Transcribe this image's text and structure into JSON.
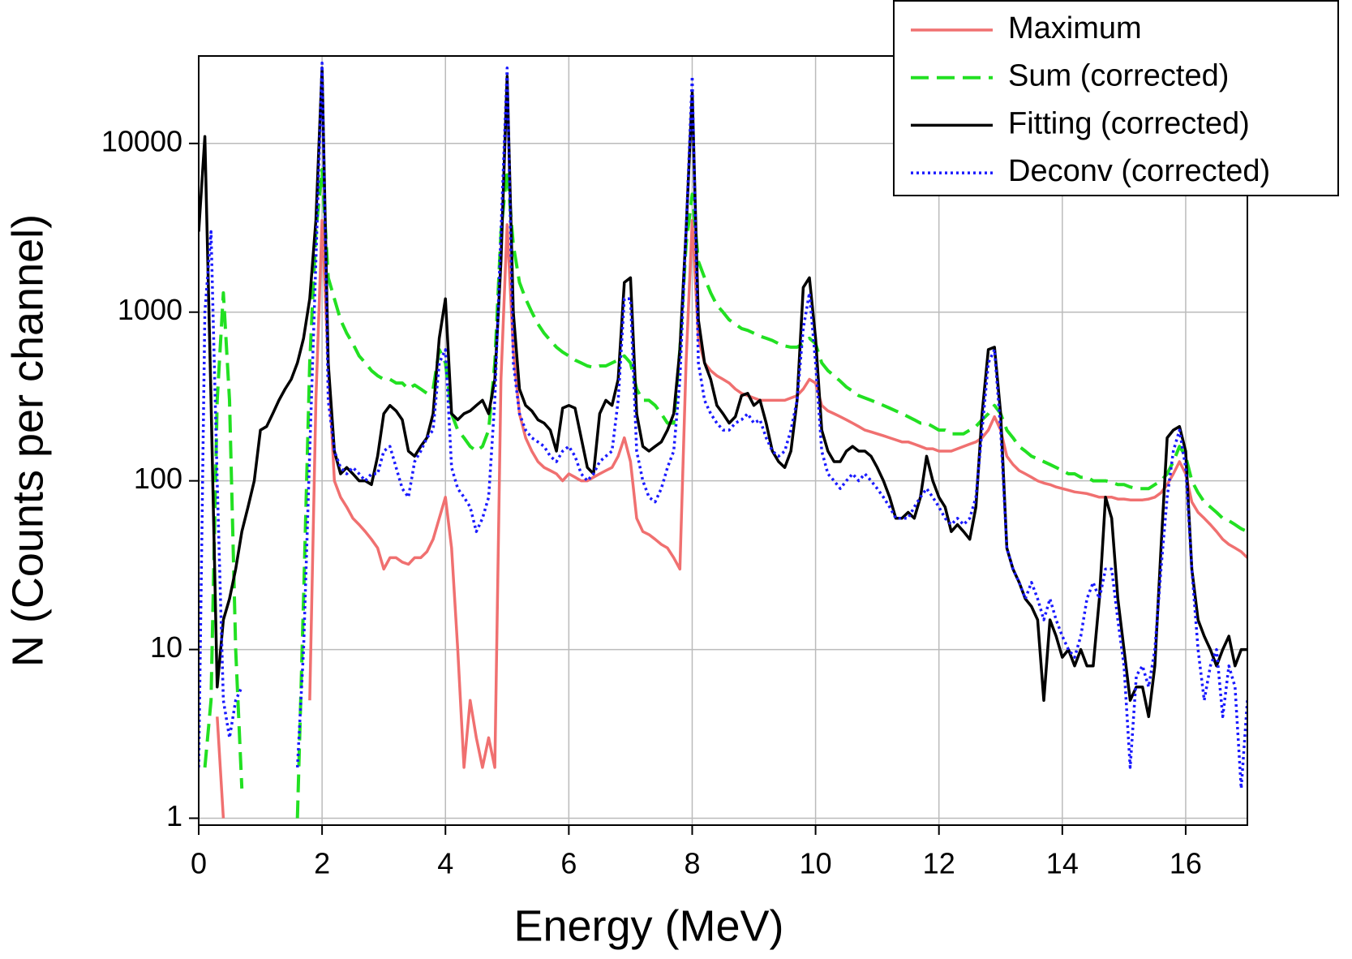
{
  "chart_data": {
    "type": "line",
    "x_label": "Energy (MeV)",
    "y_label": "N (Counts per channel)",
    "xlim": [
      0,
      17
    ],
    "ylim": [
      0.91,
      33000
    ],
    "y_scale": "log",
    "grid": true,
    "legend": "upper right",
    "xticks": [
      0,
      2,
      4,
      6,
      8,
      10,
      12,
      14,
      16
    ],
    "yticks": [
      1,
      10,
      100,
      1000,
      10000
    ],
    "x": [
      0,
      0.1,
      0.2,
      0.3,
      0.4,
      0.5,
      0.6,
      0.7,
      0.8,
      0.9,
      1,
      1.1,
      1.2,
      1.3,
      1.4,
      1.5,
      1.6,
      1.7,
      1.8,
      1.9,
      2,
      2.1,
      2.2,
      2.3,
      2.4,
      2.5,
      2.6,
      2.7,
      2.8,
      2.9,
      3,
      3.1,
      3.2,
      3.3,
      3.4,
      3.5,
      3.6,
      3.7,
      3.8,
      3.9,
      4,
      4.1,
      4.2,
      4.3,
      4.4,
      4.5,
      4.6,
      4.7,
      4.8,
      4.9,
      5,
      5.1,
      5.2,
      5.3,
      5.4,
      5.5,
      5.6,
      5.7,
      5.8,
      5.9,
      6,
      6.1,
      6.2,
      6.3,
      6.4,
      6.5,
      6.6,
      6.7,
      6.8,
      6.9,
      7,
      7.1,
      7.2,
      7.3,
      7.4,
      7.5,
      7.6,
      7.7,
      7.8,
      7.9,
      8,
      8.1,
      8.2,
      8.3,
      8.4,
      8.5,
      8.6,
      8.7,
      8.8,
      8.9,
      9,
      9.1,
      9.2,
      9.3,
      9.4,
      9.5,
      9.6,
      9.7,
      9.8,
      9.9,
      10,
      10.1,
      10.2,
      10.3,
      10.4,
      10.5,
      10.6,
      10.7,
      10.8,
      10.9,
      11,
      11.1,
      11.2,
      11.3,
      11.4,
      11.5,
      11.6,
      11.7,
      11.8,
      11.9,
      12,
      12.1,
      12.2,
      12.3,
      12.4,
      12.5,
      12.6,
      12.7,
      12.8,
      12.9,
      13,
      13.1,
      13.2,
      13.3,
      13.4,
      13.5,
      13.6,
      13.7,
      13.8,
      13.9,
      14,
      14.1,
      14.2,
      14.3,
      14.4,
      14.5,
      14.6,
      14.7,
      14.8,
      14.9,
      15,
      15.1,
      15.2,
      15.3,
      15.4,
      15.5,
      15.6,
      15.7,
      15.8,
      15.9,
      16,
      16.1,
      16.2,
      16.3,
      16.4,
      16.5,
      16.6,
      16.7,
      16.8,
      16.9,
      17
    ],
    "series": [
      {
        "name": "Maximum",
        "color": "#f07070",
        "style": "solid",
        "values": [
          null,
          null,
          null,
          4,
          1,
          null,
          null,
          null,
          null,
          null,
          null,
          null,
          null,
          null,
          null,
          null,
          null,
          null,
          5,
          300,
          3500,
          500,
          100,
          80,
          70,
          60,
          55,
          50,
          45,
          40,
          30,
          35,
          35,
          33,
          32,
          35,
          35,
          38,
          45,
          60,
          80,
          40,
          10,
          2,
          5,
          3,
          2,
          3,
          2,
          400,
          3300,
          600,
          250,
          180,
          150,
          130,
          120,
          115,
          110,
          100,
          110,
          105,
          100,
          100,
          105,
          110,
          115,
          120,
          140,
          180,
          130,
          60,
          50,
          48,
          45,
          42,
          40,
          35,
          30,
          500,
          3500,
          700,
          500,
          450,
          420,
          400,
          380,
          350,
          330,
          320,
          310,
          300,
          300,
          300,
          300,
          300,
          310,
          320,
          350,
          400,
          380,
          280,
          260,
          250,
          240,
          230,
          220,
          210,
          200,
          195,
          190,
          185,
          180,
          175,
          170,
          170,
          165,
          160,
          155,
          155,
          150,
          150,
          150,
          155,
          160,
          165,
          170,
          180,
          200,
          240,
          200,
          140,
          125,
          115,
          110,
          105,
          100,
          97,
          95,
          92,
          90,
          88,
          86,
          85,
          84,
          82,
          80,
          80,
          80,
          78,
          78,
          77,
          77,
          77,
          78,
          80,
          85,
          95,
          110,
          130,
          110,
          75,
          65,
          60,
          55,
          50,
          45,
          42,
          40,
          38,
          35
        ]
      },
      {
        "name": "Sum (corrected)",
        "color": "#22e022",
        "style": "dashed",
        "values": [
          null,
          2,
          5,
          300,
          1300,
          300,
          10,
          1.5,
          null,
          null,
          null,
          null,
          null,
          null,
          null,
          null,
          1,
          20,
          500,
          3000,
          7000,
          1600,
          1200,
          900,
          750,
          650,
          550,
          500,
          450,
          420,
          400,
          400,
          380,
          380,
          350,
          370,
          350,
          330,
          350,
          600,
          500,
          250,
          200,
          180,
          160,
          150,
          160,
          200,
          500,
          3000,
          7000,
          2500,
          1500,
          1200,
          1000,
          850,
          750,
          680,
          620,
          580,
          550,
          520,
          500,
          480,
          470,
          480,
          480,
          500,
          520,
          550,
          500,
          350,
          300,
          300,
          280,
          250,
          220,
          220,
          600,
          2500,
          5000,
          2000,
          1600,
          1300,
          1100,
          1000,
          900,
          850,
          800,
          780,
          750,
          720,
          700,
          680,
          650,
          630,
          620,
          620,
          650,
          700,
          650,
          500,
          450,
          420,
          390,
          360,
          340,
          320,
          310,
          300,
          290,
          280,
          270,
          260,
          250,
          240,
          230,
          220,
          220,
          210,
          200,
          200,
          190,
          190,
          190,
          200,
          210,
          230,
          250,
          280,
          250,
          200,
          180,
          160,
          150,
          140,
          135,
          130,
          125,
          120,
          115,
          110,
          110,
          105,
          105,
          100,
          100,
          100,
          98,
          95,
          95,
          92,
          90,
          90,
          90,
          95,
          100,
          110,
          130,
          160,
          140,
          100,
          85,
          75,
          70,
          65,
          60,
          58,
          55,
          52,
          50
        ]
      },
      {
        "name": "Fitting (corrected)",
        "color": "#000000",
        "style": "solid",
        "values": [
          3000,
          11000,
          300,
          6,
          15,
          20,
          30,
          50,
          70,
          100,
          200,
          210,
          250,
          300,
          350,
          400,
          500,
          700,
          1200,
          3500,
          28000,
          500,
          150,
          110,
          120,
          110,
          100,
          100,
          95,
          140,
          250,
          280,
          260,
          230,
          150,
          140,
          160,
          180,
          250,
          700,
          1200,
          250,
          230,
          250,
          260,
          280,
          300,
          250,
          400,
          2000,
          25000,
          1000,
          350,
          280,
          260,
          230,
          220,
          200,
          150,
          270,
          280,
          270,
          180,
          120,
          110,
          250,
          300,
          280,
          400,
          1500,
          1600,
          250,
          160,
          150,
          160,
          170,
          200,
          250,
          600,
          3000,
          20000,
          900,
          500,
          400,
          280,
          250,
          220,
          240,
          320,
          330,
          280,
          300,
          220,
          150,
          130,
          120,
          150,
          300,
          1400,
          1600,
          700,
          200,
          150,
          130,
          130,
          150,
          160,
          150,
          150,
          140,
          120,
          100,
          80,
          60,
          60,
          65,
          60,
          80,
          140,
          100,
          80,
          70,
          50,
          55,
          50,
          45,
          70,
          250,
          600,
          620,
          250,
          40,
          30,
          25,
          20,
          18,
          15,
          5,
          15,
          12,
          9,
          10,
          8,
          10,
          8,
          8,
          20,
          80,
          60,
          20,
          10,
          5,
          6,
          6,
          4,
          8,
          40,
          180,
          200,
          210,
          150,
          30,
          15,
          12,
          10,
          8,
          10,
          12,
          8,
          10,
          10
        ]
      },
      {
        "name": "Deconv (corrected)",
        "color": "#1a1aff",
        "style": "dotted",
        "values": [
          2,
          1000,
          3000,
          100,
          5,
          3,
          5,
          6,
          null,
          null,
          null,
          1,
          null,
          null,
          null,
          null,
          2,
          10,
          150,
          2000,
          30000,
          300,
          150,
          120,
          110,
          120,
          110,
          100,
          110,
          110,
          150,
          160,
          120,
          90,
          80,
          130,
          150,
          180,
          200,
          500,
          600,
          120,
          90,
          80,
          70,
          50,
          60,
          80,
          300,
          3000,
          28000,
          500,
          250,
          200,
          180,
          170,
          160,
          140,
          130,
          150,
          160,
          140,
          110,
          100,
          110,
          130,
          140,
          150,
          300,
          1200,
          1200,
          150,
          100,
          80,
          75,
          90,
          120,
          150,
          400,
          3000,
          25000,
          500,
          300,
          250,
          220,
          200,
          200,
          220,
          230,
          250,
          220,
          230,
          180,
          150,
          140,
          150,
          200,
          300,
          800,
          1300,
          500,
          150,
          110,
          100,
          90,
          100,
          110,
          100,
          110,
          100,
          90,
          80,
          70,
          60,
          60,
          60,
          70,
          80,
          90,
          80,
          70,
          60,
          55,
          60,
          55,
          60,
          80,
          200,
          500,
          600,
          200,
          40,
          30,
          25,
          20,
          25,
          20,
          15,
          20,
          15,
          12,
          10,
          9,
          12,
          20,
          25,
          20,
          30,
          30,
          15,
          8,
          2,
          7,
          8,
          6,
          10,
          30,
          80,
          150,
          200,
          120,
          30,
          10,
          5,
          8,
          10,
          4,
          8,
          6,
          1.5,
          5
        ]
      }
    ]
  }
}
